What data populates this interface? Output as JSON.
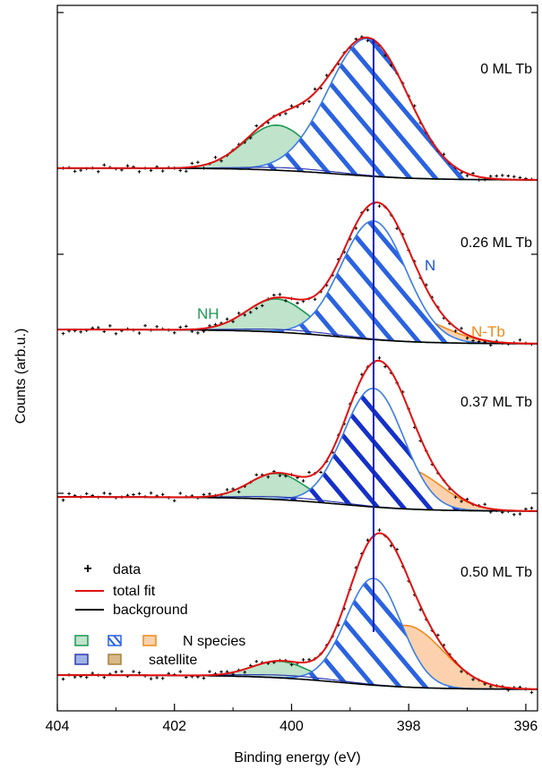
{
  "chart_data": {
    "type": "line",
    "title": "",
    "xlabel": "Binding energy (eV)",
    "ylabel": "Counts (arb.u.)",
    "xlim": [
      404,
      395.8
    ],
    "x_reversed": true,
    "xticks": [
      404,
      402,
      400,
      398,
      396
    ],
    "ylim": [
      0,
      4
    ],
    "colors": {
      "data": "#000000",
      "total_fit": "#e01010",
      "background": "#000000",
      "NH": "#1a9a50",
      "NH_fill": "#bfe3cb",
      "N": "#1a4fd8",
      "N_light": "#3b7de8",
      "N_Tb": "#f08a1c",
      "N_Tb_fill": "#fbd2ad",
      "satellite_blue": "#2d3bb0",
      "satellite_brown": "#a88040",
      "marker_line": "#1020c0"
    },
    "marker_line_x": 398.6,
    "spectra": [
      {
        "label": "0 ML Tb",
        "offset": 3,
        "background": {
          "low": 0.0,
          "high": 0.05
        },
        "components": [
          {
            "name": "NH",
            "center": 400.25,
            "height": 0.19,
            "fwhm": 1.3
          },
          {
            "name": "N",
            "center": 398.7,
            "height": 0.58,
            "fwhm": 1.6
          }
        ]
      },
      {
        "label": "0.26 ML Tb",
        "offset": 2,
        "background": {
          "low": 0.0,
          "high": 0.06
        },
        "components": [
          {
            "name": "NH",
            "center": 400.25,
            "height": 0.14,
            "fwhm": 1.2
          },
          {
            "name": "N",
            "center": 398.6,
            "height": 0.5,
            "fwhm": 1.3
          },
          {
            "name": "N-Tb",
            "center": 398.05,
            "height": 0.11,
            "fwhm": 1.5
          }
        ]
      },
      {
        "label": "0.37 ML Tb",
        "offset": 1,
        "background": {
          "low": 0.0,
          "high": 0.06
        },
        "components": [
          {
            "name": "NH",
            "center": 400.25,
            "height": 0.11,
            "fwhm": 1.1
          },
          {
            "name": "N",
            "center": 398.6,
            "height": 0.5,
            "fwhm": 1.2
          },
          {
            "name": "N-Tb",
            "center": 398.05,
            "height": 0.17,
            "fwhm": 1.4
          }
        ]
      },
      {
        "label": "0.50 ML Tb",
        "offset": 0,
        "background": {
          "low": 0.0,
          "high": 0.06
        },
        "components": [
          {
            "name": "NH",
            "center": 400.2,
            "height": 0.07,
            "fwhm": 1.1
          },
          {
            "name": "N",
            "center": 398.6,
            "height": 0.45,
            "fwhm": 1.1
          },
          {
            "name": "N-Tb",
            "center": 398.05,
            "height": 0.26,
            "fwhm": 1.5
          }
        ]
      }
    ],
    "annotations": [
      {
        "text": "NH",
        "color": "#1a9a50"
      },
      {
        "text": "N",
        "color": "#1a4fd8"
      },
      {
        "text": "N-Tb",
        "color": "#f08a1c"
      }
    ],
    "legend": {
      "position": "bottom-left",
      "data": "data",
      "total_fit": "total fit",
      "background": "background",
      "n_species": "N species",
      "satellite": "satellite"
    }
  }
}
